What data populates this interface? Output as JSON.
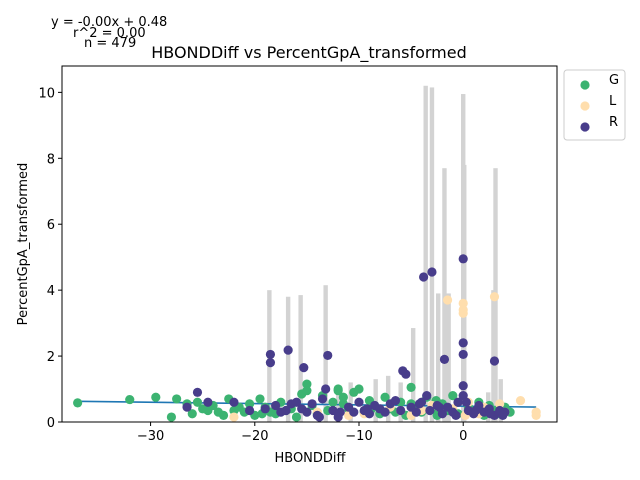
{
  "chart_data": {
    "type": "scatter",
    "title": "HBONDDiff vs PercentGpA_transformed",
    "xlabel": "HBONDDiff",
    "ylabel": "PercentGpA_transformed",
    "xlim": [
      -38.5,
      9.0
    ],
    "ylim": [
      0,
      10.8
    ],
    "xticks": [
      -30,
      -20,
      -10,
      0
    ],
    "xtick_labels": [
      "−30",
      "−20",
      "−10",
      "0"
    ],
    "yticks": [
      0,
      2,
      4,
      6,
      8,
      10
    ],
    "ytick_labels": [
      "0",
      "2",
      "4",
      "6",
      "8",
      "10"
    ],
    "grid": false,
    "legend_position": "outside top-right",
    "annotations": {
      "equation": "y = -0.00x + 0.48",
      "r2": "r^2 = 0.00",
      "n": "n = 479"
    },
    "regression": {
      "slope": -0.004,
      "intercept": 0.48,
      "x_range": [
        -37,
        7
      ],
      "color": "#1f77b4"
    },
    "bars": {
      "color": "#d3d3d3",
      "x": [
        -18.6,
        -16.8,
        -15.6,
        -13.2,
        -12.0,
        -10.8,
        -8.4,
        -7.2,
        -6.0,
        -4.8,
        -3.6,
        -3.0,
        -2.4,
        -1.8,
        -1.4,
        0.0,
        0.1,
        2.4,
        2.9,
        3.1,
        3.6
      ],
      "height": [
        4.0,
        3.8,
        3.85,
        4.15,
        1.0,
        1.2,
        1.3,
        1.4,
        1.2,
        2.85,
        10.2,
        10.15,
        3.9,
        7.7,
        3.9,
        9.95,
        7.8,
        0.9,
        4.0,
        7.7,
        1.3
      ]
    },
    "series": [
      {
        "name": "G",
        "color": "#3cb371",
        "x": [
          -37,
          -32,
          -29.5,
          -28,
          -27.5,
          -26.5,
          -26,
          -25.5,
          -25,
          -24.5,
          -24,
          -23.5,
          -23,
          -22.5,
          -22,
          -21.5,
          -21,
          -20.5,
          -20,
          -19.5,
          -19,
          -18.5,
          -18,
          -17.5,
          -17,
          -16.5,
          -16,
          -15.5,
          -15,
          -14.5,
          -14,
          -13.5,
          -13,
          -12.5,
          -12,
          -11.5,
          -11,
          -10.5,
          -10,
          -9.5,
          -9,
          -8.5,
          -8,
          -7.5,
          -7,
          -6.5,
          -6,
          -5.5,
          -5,
          -4.5,
          -4,
          -3.5,
          -3,
          -2.5,
          -2,
          -1.5,
          -1,
          -0.5,
          0.5,
          1,
          1.5,
          2,
          2.5,
          3,
          3.5,
          4,
          4.5,
          -5,
          -12,
          -11.5,
          -15,
          -2.6,
          -8.8,
          -19.3
        ],
        "y": [
          0.58,
          0.68,
          0.75,
          0.15,
          0.7,
          0.55,
          0.25,
          0.6,
          0.4,
          0.35,
          0.5,
          0.3,
          0.2,
          0.7,
          0.35,
          0.45,
          0.3,
          0.55,
          0.2,
          0.7,
          0.45,
          0.3,
          0.25,
          0.6,
          0.35,
          0.4,
          0.15,
          0.85,
          1.15,
          0.5,
          0.25,
          0.8,
          0.35,
          0.6,
          0.95,
          0.75,
          0.4,
          0.9,
          1.0,
          0.3,
          0.65,
          0.5,
          0.25,
          0.75,
          0.4,
          0.3,
          0.6,
          0.2,
          1.05,
          0.45,
          0.3,
          0.75,
          0.4,
          0.2,
          0.55,
          0.35,
          0.8,
          0.25,
          0.45,
          0.3,
          0.6,
          0.2,
          0.5,
          0.35,
          0.25,
          0.45,
          0.3,
          0.55,
          1.0,
          0.55,
          0.95,
          0.65,
          0.4,
          0.25
        ]
      },
      {
        "name": "L",
        "color": "#ffdead",
        "x": [
          -22,
          -14,
          -9.5,
          -7,
          -5,
          -4,
          -3,
          -1.5,
          0,
          0,
          0,
          0.2,
          1,
          2,
          3,
          3.5,
          4,
          5.5,
          7,
          7,
          -1,
          0.5,
          1.5,
          -6,
          -11
        ],
        "y": [
          0.15,
          0.3,
          0.25,
          0.45,
          0.2,
          0.35,
          0.5,
          3.7,
          3.6,
          3.4,
          3.3,
          0.2,
          0.3,
          0.45,
          3.8,
          0.55,
          0.3,
          0.65,
          0.3,
          0.2,
          0.4,
          0.6,
          0.25,
          0.35,
          0.2
        ]
      },
      {
        "name": "R",
        "color": "#483d8b",
        "x": [
          -26.5,
          -25.5,
          -24.5,
          -22,
          -20.5,
          -19,
          -18.5,
          -18.5,
          -18,
          -17.5,
          -17,
          -16.8,
          -16.5,
          -16,
          -15.5,
          -15.3,
          -15,
          -14.5,
          -14,
          -13.5,
          -13.2,
          -13,
          -12.5,
          -12,
          -11,
          -10.5,
          -10,
          -9.5,
          -9,
          -8.5,
          -8,
          -7.5,
          -7,
          -6.5,
          -6,
          -5.8,
          -5.5,
          -5,
          -4.5,
          -4,
          -3.8,
          -3.5,
          -3.2,
          -3,
          -2.5,
          -2,
          -1.8,
          -1.5,
          -1,
          -0.5,
          0,
          0,
          0,
          0,
          0,
          0.5,
          1,
          1.5,
          2,
          2.5,
          3,
          3,
          3.5,
          4,
          -13.8,
          -4.2,
          -2.3,
          -0.7,
          0.3,
          1.2,
          2.6,
          3.8,
          -9.2,
          -11.8
        ],
        "y": [
          0.45,
          0.9,
          0.6,
          0.6,
          0.35,
          0.4,
          2.05,
          1.8,
          0.5,
          0.3,
          0.35,
          2.18,
          0.55,
          0.6,
          0.4,
          1.65,
          0.3,
          0.55,
          0.2,
          0.7,
          1.0,
          2.02,
          0.35,
          0.15,
          0.45,
          0.3,
          0.6,
          0.35,
          0.25,
          0.5,
          0.4,
          0.3,
          0.55,
          0.65,
          0.35,
          1.55,
          1.45,
          0.45,
          0.3,
          0.6,
          4.4,
          0.8,
          0.35,
          4.55,
          0.5,
          0.25,
          1.9,
          0.45,
          0.3,
          0.6,
          4.95,
          2.4,
          2.05,
          1.1,
          0.8,
          0.35,
          0.25,
          0.5,
          0.3,
          0.4,
          1.85,
          0.2,
          0.35,
          0.3,
          0.15,
          0.55,
          0.45,
          0.2,
          0.6,
          0.35,
          0.25,
          0.2,
          0.4,
          0.3
        ]
      }
    ]
  }
}
